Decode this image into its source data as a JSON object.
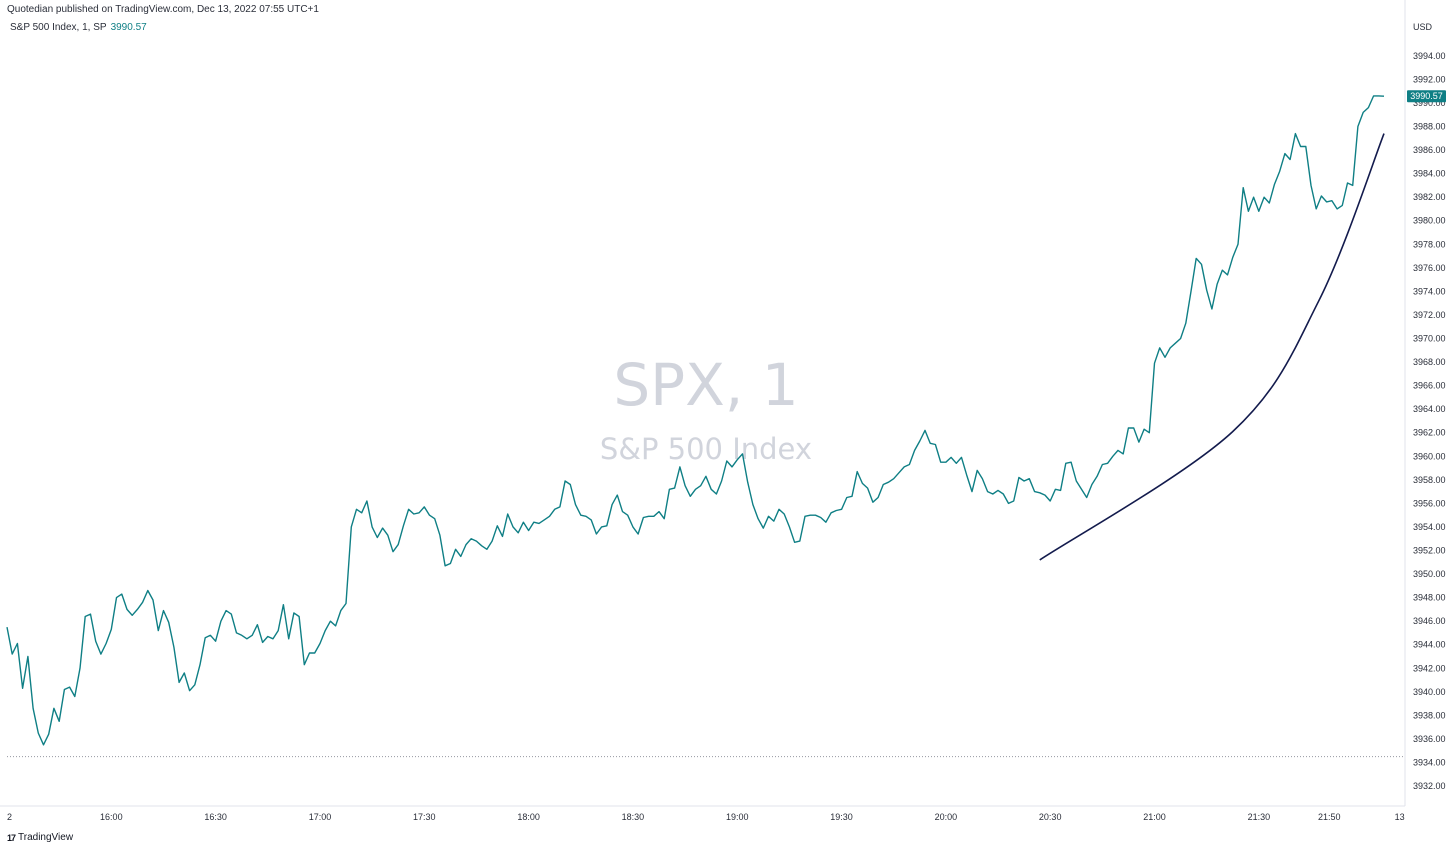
{
  "header": {
    "published": "Quotedian published on TradingView.com, Dec 13, 2022 07:55 UTC+1",
    "legend_name": "S&P 500 Index, 1, SP",
    "legend_value": "3990.57",
    "currency": "USD"
  },
  "watermark": {
    "symbol": "SPX, 1",
    "name": "S&P 500 Index"
  },
  "footer": {
    "brand": "TradingView"
  },
  "colors": {
    "line": "#0f7f85",
    "arc": "#131b4d",
    "label_bg": "#0f7f85"
  },
  "chart_data": {
    "type": "line",
    "title": "",
    "series": [
      {
        "name": "S&P 500 Index, 1, SP",
        "points": [
          [
            0,
            3945.5
          ],
          [
            2,
            3943.2
          ],
          [
            4,
            3944.1
          ],
          [
            6,
            3940.3
          ],
          [
            8,
            3943.0
          ],
          [
            10,
            3938.6
          ],
          [
            12,
            3936.5
          ],
          [
            14,
            3935.5
          ],
          [
            16,
            3936.4
          ],
          [
            18,
            3938.6
          ],
          [
            20,
            3937.5
          ],
          [
            22,
            3940.2
          ],
          [
            24,
            3940.4
          ],
          [
            26,
            3939.6
          ],
          [
            28,
            3942.0
          ],
          [
            30,
            3946.4
          ],
          [
            32,
            3946.6
          ],
          [
            34,
            3944.3
          ],
          [
            36,
            3943.2
          ],
          [
            38,
            3944.1
          ],
          [
            40,
            3945.3
          ],
          [
            42,
            3948.0
          ],
          [
            44,
            3948.3
          ],
          [
            46,
            3947.0
          ],
          [
            48,
            3946.5
          ],
          [
            50,
            3947.0
          ],
          [
            52,
            3947.6
          ],
          [
            54,
            3948.6
          ],
          [
            56,
            3947.8
          ],
          [
            58,
            3945.2
          ],
          [
            60,
            3946.9
          ],
          [
            62,
            3945.9
          ],
          [
            64,
            3943.8
          ],
          [
            66,
            3940.8
          ],
          [
            68,
            3941.6
          ],
          [
            70,
            3940.1
          ],
          [
            72,
            3940.6
          ],
          [
            74,
            3942.3
          ],
          [
            76,
            3944.6
          ],
          [
            78,
            3944.8
          ],
          [
            80,
            3944.3
          ],
          [
            82,
            3946.0
          ],
          [
            84,
            3946.9
          ],
          [
            86,
            3946.6
          ],
          [
            88,
            3945.0
          ],
          [
            90,
            3944.8
          ],
          [
            92,
            3944.5
          ],
          [
            94,
            3944.8
          ],
          [
            96,
            3945.7
          ],
          [
            98,
            3944.2
          ],
          [
            100,
            3944.7
          ],
          [
            102,
            3944.5
          ],
          [
            104,
            3945.2
          ],
          [
            106,
            3947.4
          ],
          [
            108,
            3944.5
          ],
          [
            110,
            3946.7
          ],
          [
            112,
            3946.4
          ],
          [
            114,
            3942.3
          ],
          [
            116,
            3943.3
          ],
          [
            118,
            3943.3
          ],
          [
            120,
            3944.1
          ],
          [
            122,
            3945.2
          ],
          [
            124,
            3946.0
          ],
          [
            126,
            3945.6
          ],
          [
            128,
            3946.9
          ],
          [
            130,
            3947.5
          ],
          [
            132,
            3954.0
          ],
          [
            134,
            3955.5
          ],
          [
            136,
            3955.2
          ],
          [
            138,
            3956.2
          ],
          [
            140,
            3954.0
          ],
          [
            142,
            3953.1
          ],
          [
            144,
            3953.9
          ],
          [
            146,
            3953.3
          ],
          [
            148,
            3951.9
          ],
          [
            150,
            3952.5
          ],
          [
            152,
            3954.1
          ],
          [
            154,
            3955.5
          ],
          [
            156,
            3955.1
          ],
          [
            158,
            3955.2
          ],
          [
            160,
            3955.7
          ],
          [
            162,
            3955.0
          ],
          [
            164,
            3954.7
          ],
          [
            166,
            3953.3
          ],
          [
            168,
            3950.7
          ],
          [
            170,
            3950.9
          ],
          [
            172,
            3952.1
          ],
          [
            174,
            3951.5
          ],
          [
            176,
            3952.5
          ],
          [
            178,
            3953.0
          ],
          [
            180,
            3952.8
          ],
          [
            182,
            3952.4
          ],
          [
            184,
            3952.1
          ],
          [
            186,
            3952.8
          ],
          [
            188,
            3954.1
          ],
          [
            190,
            3953.2
          ],
          [
            192,
            3955.1
          ],
          [
            194,
            3954.0
          ],
          [
            196,
            3953.5
          ],
          [
            198,
            3954.4
          ],
          [
            200,
            3953.7
          ],
          [
            202,
            3954.4
          ],
          [
            204,
            3954.3
          ],
          [
            206,
            3954.6
          ],
          [
            208,
            3954.9
          ],
          [
            210,
            3955.5
          ],
          [
            212,
            3955.7
          ],
          [
            214,
            3957.9
          ],
          [
            216,
            3957.6
          ],
          [
            218,
            3955.9
          ],
          [
            220,
            3955.0
          ],
          [
            222,
            3954.9
          ],
          [
            224,
            3954.6
          ],
          [
            226,
            3953.4
          ],
          [
            228,
            3954.0
          ],
          [
            230,
            3954.1
          ],
          [
            232,
            3955.9
          ],
          [
            234,
            3956.7
          ],
          [
            236,
            3955.3
          ],
          [
            238,
            3955.0
          ],
          [
            240,
            3954.0
          ],
          [
            242,
            3953.4
          ],
          [
            244,
            3954.8
          ],
          [
            246,
            3954.9
          ],
          [
            248,
            3954.9
          ],
          [
            250,
            3955.3
          ],
          [
            252,
            3954.7
          ],
          [
            254,
            3957.2
          ],
          [
            256,
            3957.3
          ],
          [
            258,
            3959.1
          ],
          [
            260,
            3957.5
          ],
          [
            262,
            3956.6
          ],
          [
            264,
            3957.2
          ],
          [
            266,
            3957.5
          ],
          [
            268,
            3958.3
          ],
          [
            270,
            3957.2
          ],
          [
            272,
            3956.8
          ],
          [
            274,
            3957.9
          ],
          [
            276,
            3959.6
          ],
          [
            278,
            3959.1
          ],
          [
            280,
            3959.7
          ],
          [
            282,
            3960.2
          ],
          [
            284,
            3957.8
          ],
          [
            286,
            3955.9
          ],
          [
            288,
            3954.7
          ],
          [
            290,
            3953.9
          ],
          [
            292,
            3954.9
          ],
          [
            294,
            3954.5
          ],
          [
            296,
            3955.5
          ],
          [
            298,
            3955.1
          ],
          [
            300,
            3954.0
          ],
          [
            302,
            3952.7
          ],
          [
            304,
            3952.8
          ],
          [
            306,
            3954.9
          ],
          [
            308,
            3955.0
          ],
          [
            310,
            3955.0
          ],
          [
            312,
            3954.8
          ],
          [
            314,
            3954.4
          ],
          [
            316,
            3955.2
          ],
          [
            318,
            3955.4
          ],
          [
            320,
            3955.5
          ],
          [
            322,
            3956.5
          ],
          [
            324,
            3956.6
          ],
          [
            326,
            3958.7
          ],
          [
            328,
            3957.7
          ],
          [
            330,
            3957.3
          ],
          [
            332,
            3956.1
          ],
          [
            334,
            3956.5
          ],
          [
            336,
            3957.6
          ],
          [
            338,
            3957.8
          ],
          [
            340,
            3958.1
          ],
          [
            342,
            3958.6
          ],
          [
            344,
            3959.1
          ],
          [
            346,
            3959.3
          ],
          [
            348,
            3960.5
          ],
          [
            350,
            3961.3
          ],
          [
            352,
            3962.2
          ],
          [
            354,
            3961.1
          ],
          [
            356,
            3961.0
          ],
          [
            358,
            3959.5
          ],
          [
            360,
            3959.5
          ],
          [
            362,
            3959.9
          ],
          [
            364,
            3959.4
          ],
          [
            366,
            3959.9
          ],
          [
            368,
            3958.4
          ],
          [
            370,
            3957.0
          ],
          [
            372,
            3958.8
          ],
          [
            374,
            3958.1
          ],
          [
            376,
            3957.0
          ],
          [
            378,
            3956.8
          ],
          [
            380,
            3957.1
          ],
          [
            382,
            3956.8
          ],
          [
            384,
            3956.0
          ],
          [
            386,
            3956.2
          ],
          [
            388,
            3958.2
          ],
          [
            390,
            3957.9
          ],
          [
            392,
            3958.1
          ],
          [
            394,
            3957.0
          ],
          [
            396,
            3956.9
          ],
          [
            398,
            3956.7
          ],
          [
            400,
            3956.2
          ],
          [
            402,
            3957.2
          ],
          [
            404,
            3957.1
          ],
          [
            406,
            3959.4
          ],
          [
            408,
            3959.5
          ],
          [
            410,
            3957.9
          ],
          [
            412,
            3957.2
          ],
          [
            414,
            3956.5
          ],
          [
            416,
            3957.6
          ],
          [
            418,
            3958.3
          ],
          [
            420,
            3959.3
          ],
          [
            422,
            3959.4
          ],
          [
            424,
            3960.0
          ],
          [
            426,
            3960.5
          ],
          [
            428,
            3960.2
          ],
          [
            430,
            3962.4
          ],
          [
            432,
            3962.4
          ],
          [
            434,
            3961.2
          ],
          [
            436,
            3962.3
          ],
          [
            438,
            3962.0
          ],
          [
            440,
            3967.9
          ],
          [
            442,
            3969.2
          ],
          [
            444,
            3968.4
          ],
          [
            446,
            3969.2
          ],
          [
            448,
            3969.6
          ],
          [
            450,
            3970.0
          ],
          [
            452,
            3971.3
          ],
          [
            454,
            3974.0
          ],
          [
            456,
            3976.8
          ],
          [
            458,
            3976.3
          ],
          [
            460,
            3974.1
          ],
          [
            462,
            3972.5
          ],
          [
            464,
            3974.6
          ],
          [
            466,
            3975.8
          ],
          [
            468,
            3975.4
          ],
          [
            470,
            3976.9
          ],
          [
            472,
            3978.0
          ],
          [
            474,
            3982.8
          ],
          [
            476,
            3980.8
          ],
          [
            478,
            3982.0
          ],
          [
            480,
            3980.8
          ],
          [
            482,
            3982.0
          ],
          [
            484,
            3981.5
          ],
          [
            486,
            3983.1
          ],
          [
            488,
            3984.2
          ],
          [
            490,
            3985.7
          ],
          [
            492,
            3985.2
          ],
          [
            494,
            3987.4
          ],
          [
            496,
            3986.3
          ],
          [
            498,
            3986.3
          ],
          [
            500,
            3983.0
          ],
          [
            502,
            3981.0
          ],
          [
            504,
            3982.1
          ],
          [
            506,
            3981.6
          ],
          [
            508,
            3981.7
          ],
          [
            510,
            3981.0
          ],
          [
            512,
            3981.3
          ],
          [
            514,
            3983.2
          ],
          [
            516,
            3983.0
          ],
          [
            518,
            3988.0
          ],
          [
            520,
            3989.2
          ],
          [
            522,
            3989.6
          ],
          [
            524,
            3990.6
          ],
          [
            526,
            3990.6
          ],
          [
            528,
            3990.57
          ]
        ]
      }
    ],
    "annotation_arc": [
      [
        396,
        3951.2
      ],
      [
        470,
        3962.1
      ],
      [
        503,
        3973.2
      ],
      [
        528,
        3987.4
      ]
    ],
    "x_start": "15:33",
    "x_ticks": [
      {
        "label": "2",
        "minute": 0
      },
      {
        "label": "16:00",
        "minute": 40
      },
      {
        "label": "16:30",
        "minute": 80
      },
      {
        "label": "17:00",
        "minute": 120
      },
      {
        "label": "17:30",
        "minute": 160
      },
      {
        "label": "18:00",
        "minute": 200
      },
      {
        "label": "18:30",
        "minute": 240
      },
      {
        "label": "19:00",
        "minute": 280
      },
      {
        "label": "19:30",
        "minute": 320
      },
      {
        "label": "20:00",
        "minute": 360
      },
      {
        "label": "20:30",
        "minute": 400
      },
      {
        "label": "21:00",
        "minute": 440
      },
      {
        "label": "21:30",
        "minute": 480
      },
      {
        "label": "21:50",
        "minute": 507
      },
      {
        "label": "13",
        "minute": 534
      }
    ],
    "y_ticks": [
      "3932.00",
      "3934.00",
      "3936.00",
      "3938.00",
      "3940.00",
      "3942.00",
      "3944.00",
      "3946.00",
      "3948.00",
      "3950.00",
      "3952.00",
      "3954.00",
      "3956.00",
      "3958.00",
      "3960.00",
      "3962.00",
      "3964.00",
      "3966.00",
      "3968.00",
      "3970.00",
      "3972.00",
      "3974.00",
      "3976.00",
      "3978.00",
      "3980.00",
      "3982.00",
      "3984.00",
      "3986.00",
      "3988.00",
      "3990.00",
      "3992.00",
      "3994.00"
    ],
    "ylim": [
      3932,
      3996
    ],
    "reference_line": 3934.5,
    "last_value_label": "3990.57",
    "grid": false,
    "legend": "top-left"
  }
}
